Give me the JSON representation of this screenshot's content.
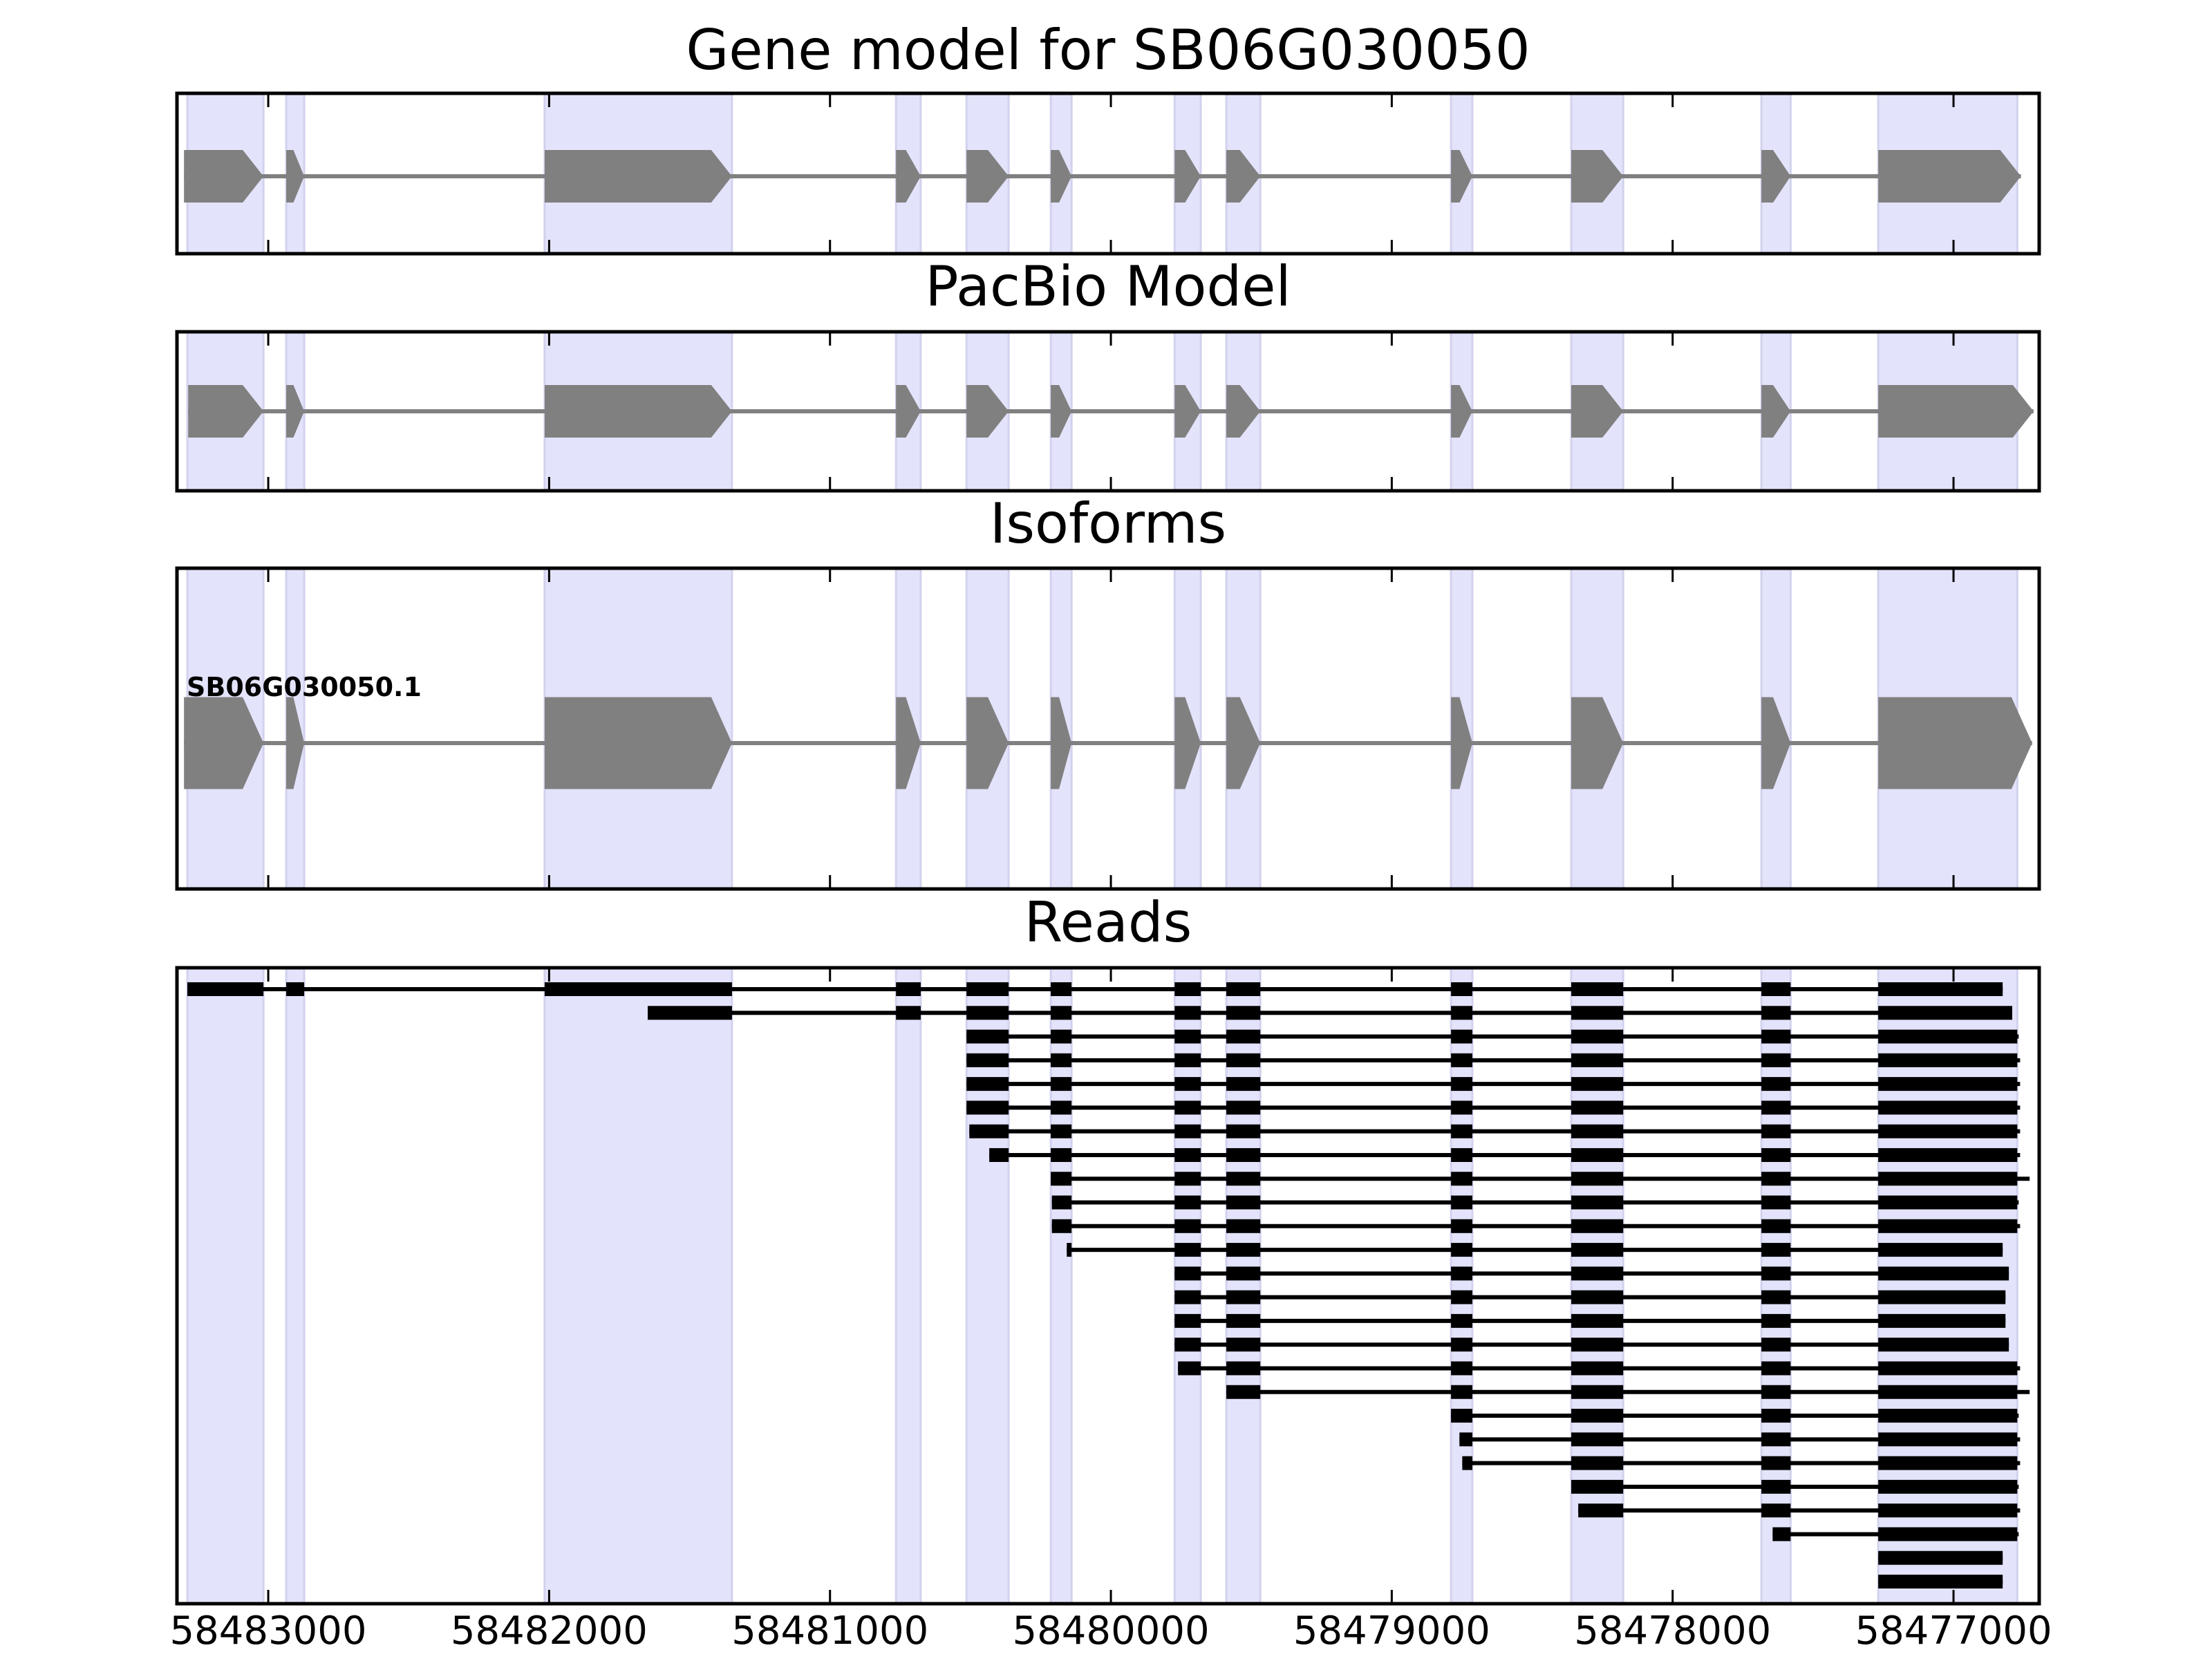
{
  "colors": {
    "shade": "#e3e3fb",
    "shade_edge": "#d2d2ee",
    "exon": "#808080",
    "read": "#000000",
    "frame": "#000000"
  },
  "chart_data": {
    "type": "gene-track",
    "xlim": [
      58483325,
      58476695
    ],
    "x_ticks": [
      {
        "value": 58483000,
        "label": "58483000"
      },
      {
        "value": 58482000,
        "label": "58482000"
      },
      {
        "value": 58481000,
        "label": "58481000"
      },
      {
        "value": 58480000,
        "label": "58480000"
      },
      {
        "value": 58479000,
        "label": "58479000"
      },
      {
        "value": 58478000,
        "label": "58478000"
      },
      {
        "value": 58477000,
        "label": "58477000"
      }
    ],
    "exons": [
      [
        58483288,
        58483017
      ],
      [
        58482936,
        58482872
      ],
      [
        58482016,
        58481349
      ],
      [
        58480765,
        58480677
      ],
      [
        58480514,
        58480364
      ],
      [
        58480214,
        58480140
      ],
      [
        58479773,
        58479680
      ],
      [
        58479589,
        58479468
      ],
      [
        58478789,
        58478713
      ],
      [
        58478361,
        58478176
      ],
      [
        58477684,
        58477580
      ],
      [
        58477268,
        58476773
      ]
    ],
    "panels": {
      "gene_model": {
        "title": "Gene model for SB06G030050",
        "start": 58483300,
        "end": 58476760
      },
      "pacbio": {
        "title": "PacBio Model",
        "start": 58483285,
        "end": 58476715
      },
      "isoforms": {
        "title": "Isoforms",
        "label": "SB06G030050.1",
        "start": 58483300,
        "end": 58476720
      },
      "reads": {
        "title": "Reads"
      }
    },
    "reads": [
      {
        "start": 58483288,
        "end": 58476825
      },
      {
        "start": 58481649,
        "end": 58476791
      },
      {
        "start": 58480514,
        "end": 58476768
      },
      {
        "start": 58480514,
        "end": 58476763
      },
      {
        "start": 58480514,
        "end": 58476763
      },
      {
        "start": 58480514,
        "end": 58476763
      },
      {
        "start": 58480504,
        "end": 58476763
      },
      {
        "start": 58480433,
        "end": 58476763
      },
      {
        "start": 58480214,
        "end": 58476729
      },
      {
        "start": 58480210,
        "end": 58476768
      },
      {
        "start": 58480210,
        "end": 58476763
      },
      {
        "start": 58480157,
        "end": 58476825
      },
      {
        "start": 58479773,
        "end": 58476803
      },
      {
        "start": 58479773,
        "end": 58476815
      },
      {
        "start": 58479773,
        "end": 58476815
      },
      {
        "start": 58479773,
        "end": 58476803
      },
      {
        "start": 58479761,
        "end": 58476763
      },
      {
        "start": 58479589,
        "end": 58476729
      },
      {
        "start": 58478789,
        "end": 58476768
      },
      {
        "start": 58478759,
        "end": 58476763
      },
      {
        "start": 58478749,
        "end": 58476763
      },
      {
        "start": 58478361,
        "end": 58476768
      },
      {
        "start": 58478336,
        "end": 58476763
      },
      {
        "start": 58477644,
        "end": 58476768
      },
      {
        "start": 58477268,
        "end": 58476825
      },
      {
        "start": 58477268,
        "end": 58476825
      }
    ]
  }
}
